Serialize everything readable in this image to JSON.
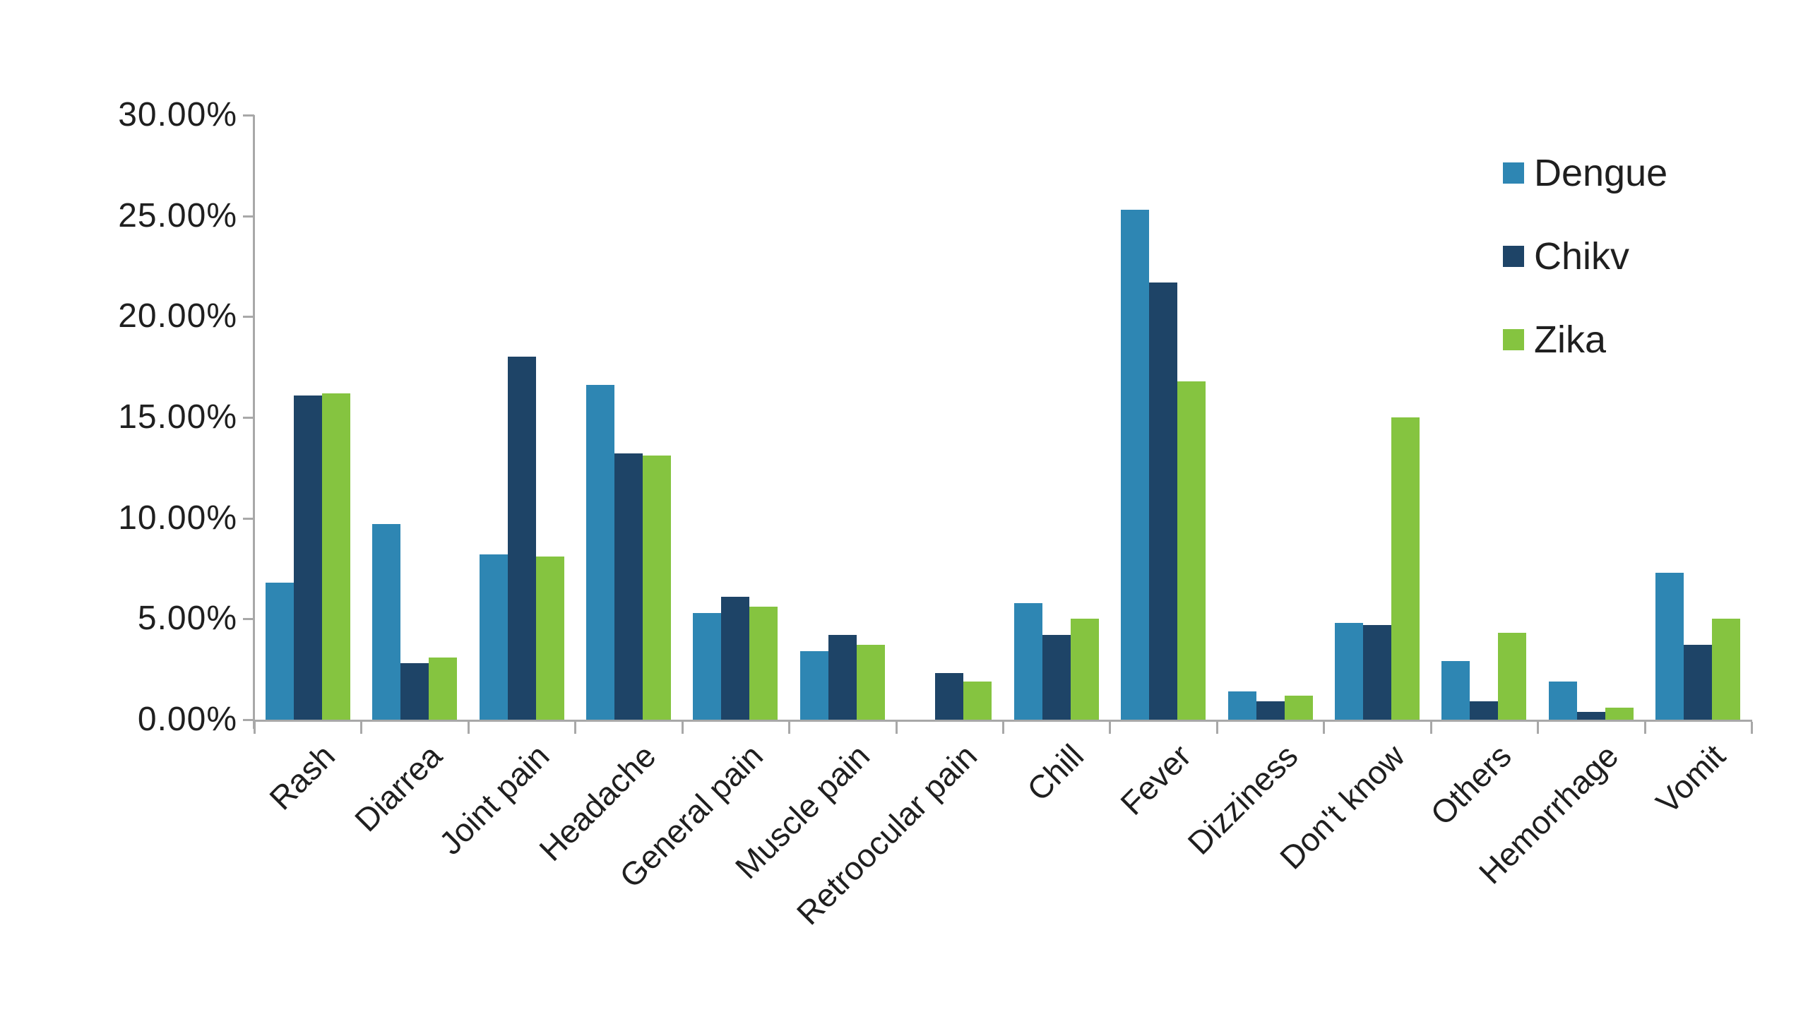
{
  "chart_data": {
    "type": "bar",
    "title": "",
    "xlabel": "",
    "ylabel": "",
    "ylim": [
      0,
      30
    ],
    "grid": false,
    "legend_position": "top-right",
    "axis_color": "#a8a8a8",
    "categories": [
      "Rash",
      "Diarrea",
      "Joint pain",
      "Headache",
      "General pain",
      "Muscle pain",
      "Retroocular pain",
      "Chill",
      "Fever",
      "Dizziness",
      "Don't know",
      "Others",
      "Hemorrhage",
      "Vomit"
    ],
    "series": [
      {
        "name": "Dengue",
        "color": "#2E86B3",
        "values": [
          6.8,
          9.7,
          8.2,
          16.6,
          5.3,
          3.4,
          0,
          5.8,
          25.3,
          1.4,
          4.8,
          2.9,
          1.9,
          7.3
        ]
      },
      {
        "name": "Chikv",
        "color": "#1E4467",
        "values": [
          16.1,
          2.8,
          18.0,
          13.2,
          6.1,
          4.2,
          2.3,
          4.2,
          21.7,
          0.9,
          4.7,
          0.9,
          0.4,
          3.7
        ]
      },
      {
        "name": "Zika",
        "color": "#85C440",
        "values": [
          16.2,
          3.1,
          8.1,
          13.1,
          5.6,
          3.7,
          1.9,
          5.0,
          16.8,
          1.2,
          15.0,
          4.3,
          0.6,
          5.0
        ]
      }
    ],
    "y_ticks": [
      {
        "v": 30,
        "label": "30.00%"
      },
      {
        "v": 25,
        "label": "25.00%"
      },
      {
        "v": 20,
        "label": "20.00%"
      },
      {
        "v": 15,
        "label": "15.00%"
      },
      {
        "v": 10,
        "label": "10.00%"
      },
      {
        "v": 5,
        "label": "5.00%"
      },
      {
        "v": 0,
        "label": "0.00%"
      }
    ]
  },
  "legend": {
    "items": [
      {
        "label": "Dengue"
      },
      {
        "label": "Chikv"
      },
      {
        "label": "Zika"
      }
    ]
  }
}
